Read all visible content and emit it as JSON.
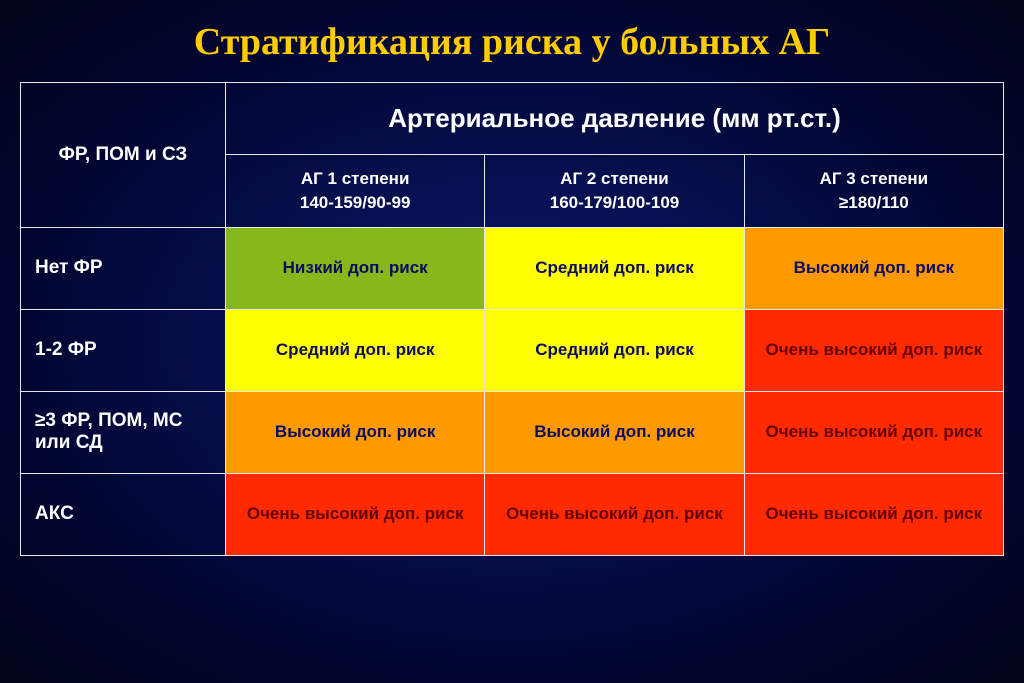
{
  "title": {
    "text": "Стратификация риска у больных АГ",
    "color": "#ffcc00"
  },
  "table": {
    "corner_label": "ФР, ПОМ и СЗ",
    "super_header": "Артериальное давление (мм рт.ст.)",
    "column_headers": [
      {
        "line1": "АГ 1 степени",
        "line2": "140-159/90-99"
      },
      {
        "line1": "АГ 2 степени",
        "line2": "160-179/100-109"
      },
      {
        "line1": "АГ 3 степени",
        "line2": "≥180/110"
      }
    ],
    "row_headers": [
      "Нет ФР",
      "1-2 ФР",
      "≥3 ФР, ПОМ, МС или СД",
      "АКС"
    ],
    "cells": [
      [
        {
          "text": "Низкий доп. риск",
          "bg": "#87b81a",
          "fg": "#0b0b63"
        },
        {
          "text": "Средний доп. риск",
          "bg": "#ffff00",
          "fg": "#0b0b63"
        },
        {
          "text": "Высокий доп. риск",
          "bg": "#ff9900",
          "fg": "#0b0b63"
        }
      ],
      [
        {
          "text": "Средний доп. риск",
          "bg": "#ffff00",
          "fg": "#0b0b63"
        },
        {
          "text": "Средний доп. риск",
          "bg": "#ffff00",
          "fg": "#0b0b63"
        },
        {
          "text": "Очень высокий доп. риск",
          "bg": "#ff2a00",
          "fg": "#660000"
        }
      ],
      [
        {
          "text": "Высокий доп. риск",
          "bg": "#ff9900",
          "fg": "#0b0b63"
        },
        {
          "text": "Высокий доп. риск",
          "bg": "#ff9900",
          "fg": "#0b0b63"
        },
        {
          "text": "Очень высокий доп. риск",
          "bg": "#ff2a00",
          "fg": "#660000"
        }
      ],
      [
        {
          "text": "Очень высокий доп. риск",
          "bg": "#ff2a00",
          "fg": "#660000"
        },
        {
          "text": "Очень высокий доп. риск",
          "bg": "#ff2a00",
          "fg": "#660000"
        },
        {
          "text": "Очень высокий доп. риск",
          "bg": "#ff2a00",
          "fg": "#660000"
        }
      ]
    ]
  },
  "style": {
    "border_color": "#e8e8e8",
    "header_text_color": "#ffffff",
    "row_header_text_color": "#ffffff"
  }
}
